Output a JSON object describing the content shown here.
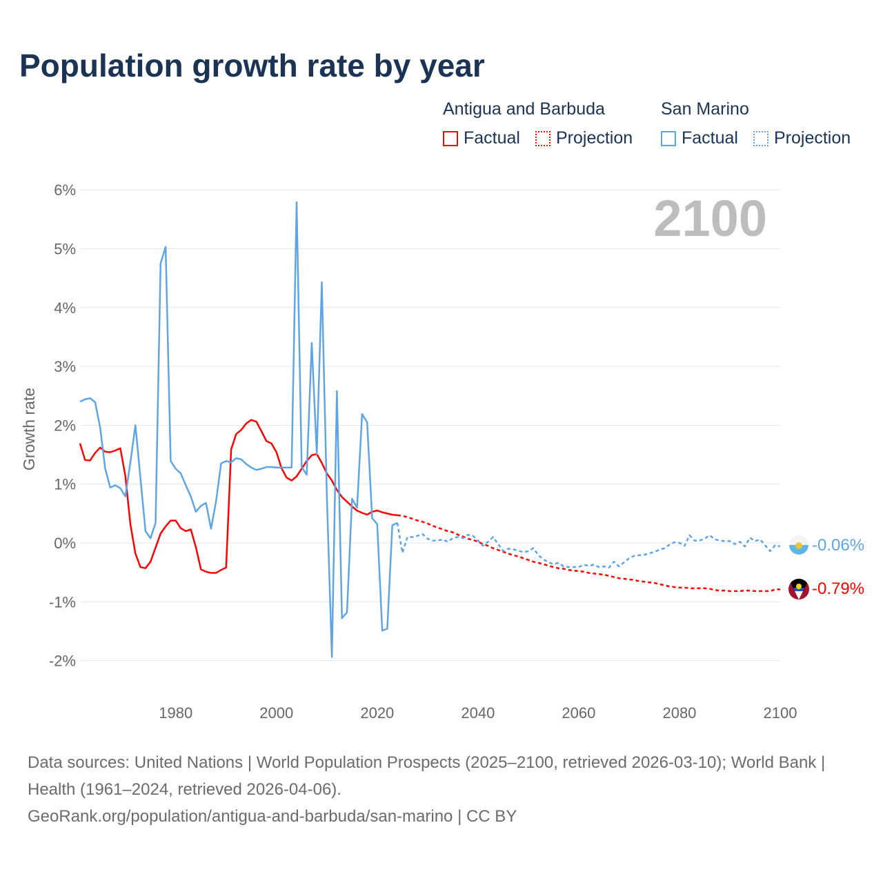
{
  "title": "Population growth rate by year",
  "legend": {
    "groups": [
      {
        "name": "Antigua and Barbuda",
        "factual": "Factual",
        "projection": "Projection",
        "color": "#ff0000"
      },
      {
        "name": "San Marino",
        "factual": "Factual",
        "projection": "Projection",
        "color": "#5ea5e8"
      }
    ]
  },
  "year_watermark": "2100",
  "end_labels": {
    "san_marino": "-0.06%",
    "antigua": "-0.79%"
  },
  "footer": {
    "line1": "Data sources: United Nations | World Population Prospects (2025–2100, retrieved 2026-03-10); World Bank | Health (1961–2024, retrieved 2026-04-06).",
    "line2": "GeoRank.org/population/antigua-and-barbuda/san-marino | CC BY"
  },
  "chart_data": {
    "type": "line",
    "title": "Population growth rate by year",
    "xlabel": "",
    "ylabel": "Growth rate",
    "xlim": [
      1961,
      2100
    ],
    "ylim": [
      -2,
      6
    ],
    "x_ticks": [
      "1980",
      "2000",
      "2020",
      "2040",
      "2060",
      "2080",
      "2100"
    ],
    "y_ticks": [
      "-2%",
      "-1%",
      "0%",
      "1%",
      "2%",
      "3%",
      "4%",
      "5%",
      "6%"
    ],
    "grid": true,
    "legend_position": "top-right",
    "series": [
      {
        "name": "Antigua and Barbuda - Factual",
        "color": "#ff0000",
        "style": "solid",
        "x_start": 1961,
        "values": [
          1.69,
          1.41,
          1.4,
          1.53,
          1.62,
          1.55,
          1.54,
          1.57,
          1.61,
          1.14,
          0.32,
          -0.18,
          -0.41,
          -0.43,
          -0.32,
          -0.08,
          0.16,
          0.28,
          0.38,
          0.38,
          0.25,
          0.2,
          0.23,
          -0.07,
          -0.45,
          -0.49,
          -0.51,
          -0.51,
          -0.46,
          -0.42,
          1.59,
          1.85,
          1.92,
          2.03,
          2.09,
          2.06,
          1.9,
          1.73,
          1.69,
          1.54,
          1.27,
          1.11,
          1.06,
          1.13,
          1.26,
          1.39,
          1.49,
          1.51,
          1.36,
          1.18,
          1.06,
          0.9,
          0.78,
          0.7,
          0.62,
          0.55,
          0.51,
          0.48,
          0.53,
          0.55,
          0.52,
          0.5,
          0.48,
          0.47
        ]
      },
      {
        "name": "Antigua and Barbuda - Projection",
        "color": "#ff0000",
        "style": "dotted",
        "x_start": 2024,
        "values": [
          0.47,
          0.46,
          0.44,
          0.41,
          0.38,
          0.36,
          0.33,
          0.29,
          0.26,
          0.23,
          0.2,
          0.18,
          0.14,
          0.11,
          0.07,
          0.05,
          0.02,
          -0.02,
          -0.05,
          -0.09,
          -0.12,
          -0.15,
          -0.18,
          -0.21,
          -0.23,
          -0.26,
          -0.29,
          -0.32,
          -0.34,
          -0.36,
          -0.39,
          -0.41,
          -0.43,
          -0.44,
          -0.46,
          -0.47,
          -0.48,
          -0.49,
          -0.51,
          -0.52,
          -0.53,
          -0.54,
          -0.56,
          -0.58,
          -0.6,
          -0.61,
          -0.62,
          -0.63,
          -0.65,
          -0.66,
          -0.67,
          -0.68,
          -0.7,
          -0.72,
          -0.74,
          -0.75,
          -0.76,
          -0.76,
          -0.77,
          -0.77,
          -0.77,
          -0.77,
          -0.78,
          -0.8,
          -0.81,
          -0.81,
          -0.82,
          -0.82,
          -0.82,
          -0.81,
          -0.81,
          -0.82,
          -0.82,
          -0.82,
          -0.82,
          -0.79,
          -0.79
        ]
      },
      {
        "name": "San Marino - Factual",
        "color": "#5ea5e8",
        "style": "solid",
        "x_start": 1961,
        "values": [
          2.4,
          2.44,
          2.46,
          2.39,
          1.96,
          1.26,
          0.94,
          0.98,
          0.93,
          0.79,
          1.37,
          2.0,
          1.1,
          0.2,
          0.08,
          0.34,
          4.75,
          5.03,
          1.39,
          1.26,
          1.18,
          0.98,
          0.79,
          0.53,
          0.63,
          0.68,
          0.24,
          0.71,
          1.35,
          1.39,
          1.37,
          1.44,
          1.42,
          1.34,
          1.28,
          1.24,
          1.26,
          1.29,
          1.29,
          1.28,
          1.28,
          1.28,
          1.28,
          5.79,
          1.29,
          1.16,
          3.4,
          1.51,
          4.43,
          0.8,
          -1.94,
          2.58,
          -1.28,
          -1.18,
          0.75,
          0.6,
          2.19,
          2.05,
          0.42,
          0.32,
          -1.49,
          -1.46,
          0.3,
          0.34
        ]
      },
      {
        "name": "San Marino - Projection",
        "color": "#5ea5e8",
        "style": "dotted",
        "x_start": 2024,
        "values": [
          0.34,
          -0.17,
          0.1,
          0.1,
          0.12,
          0.15,
          0.07,
          0.04,
          0.04,
          0.06,
          0.02,
          0.08,
          0.1,
          0.08,
          0.14,
          0.12,
          0.04,
          -0.05,
          0.02,
          0.1,
          -0.02,
          -0.14,
          -0.1,
          -0.11,
          -0.13,
          -0.16,
          -0.14,
          -0.09,
          -0.21,
          -0.28,
          -0.33,
          -0.36,
          -0.34,
          -0.4,
          -0.41,
          -0.41,
          -0.41,
          -0.37,
          -0.39,
          -0.37,
          -0.41,
          -0.4,
          -0.42,
          -0.32,
          -0.4,
          -0.33,
          -0.26,
          -0.22,
          -0.21,
          -0.2,
          -0.18,
          -0.15,
          -0.12,
          -0.09,
          -0.03,
          0.01,
          0.0,
          -0.05,
          0.13,
          0.04,
          0.04,
          0.07,
          0.13,
          0.06,
          0.04,
          0.03,
          0.03,
          -0.02,
          0.02,
          -0.06,
          0.09,
          0.03,
          0.06,
          -0.04,
          -0.14,
          -0.04,
          -0.06
        ]
      }
    ]
  }
}
